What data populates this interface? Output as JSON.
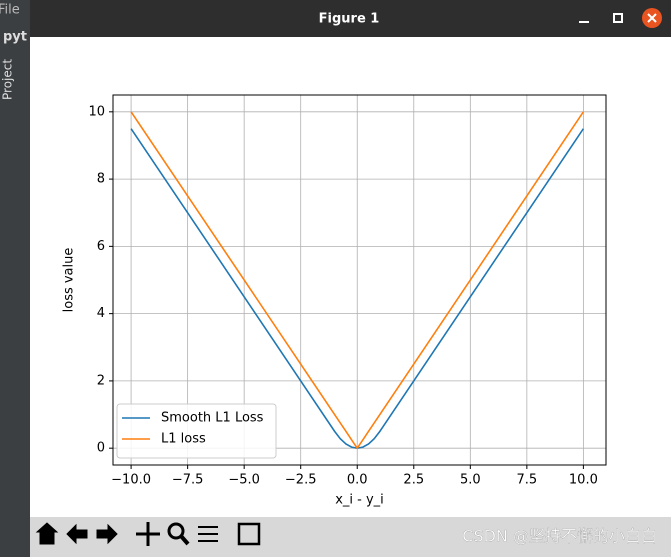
{
  "ide": {
    "menu": "File",
    "tab": "pyt",
    "panel": "Project"
  },
  "window": {
    "title": "Figure 1"
  },
  "watermark": "CSDN @坚持不懈的小白白",
  "chart_data": {
    "type": "line",
    "x_label": "x_i - y_i",
    "y_label": "loss value",
    "x": [
      -10,
      -1,
      -0.75,
      -0.5,
      -0.25,
      0,
      0.25,
      0.5,
      0.75,
      1,
      10
    ],
    "series": [
      {
        "name": "Smooth L1 Loss",
        "color": "#1f77b4",
        "values": [
          9.5,
          0.5,
          0.28125,
          0.125,
          0.03125,
          0,
          0.03125,
          0.125,
          0.28125,
          0.5,
          9.5
        ]
      },
      {
        "name": "L1 loss",
        "color": "#ff7f0e",
        "values": [
          10,
          1,
          0.75,
          0.5,
          0.25,
          0,
          0.25,
          0.5,
          0.75,
          1,
          10
        ]
      }
    ],
    "xlim": [
      -10.8,
      11
    ],
    "ylim": [
      -0.5,
      10.5
    ],
    "xticks": [
      {
        "value": -10,
        "label": "−10.0"
      },
      {
        "value": -7.5,
        "label": "−7.5"
      },
      {
        "value": -5,
        "label": "−5.0"
      },
      {
        "value": -2.5,
        "label": "−2.5"
      },
      {
        "value": 0,
        "label": "0.0"
      },
      {
        "value": 2.5,
        "label": "2.5"
      },
      {
        "value": 5,
        "label": "5.0"
      },
      {
        "value": 7.5,
        "label": "7.5"
      },
      {
        "value": 10,
        "label": "10.0"
      }
    ],
    "yticks": [
      0,
      2,
      4,
      6,
      8,
      10
    ],
    "grid": true,
    "legend": "lower left"
  }
}
